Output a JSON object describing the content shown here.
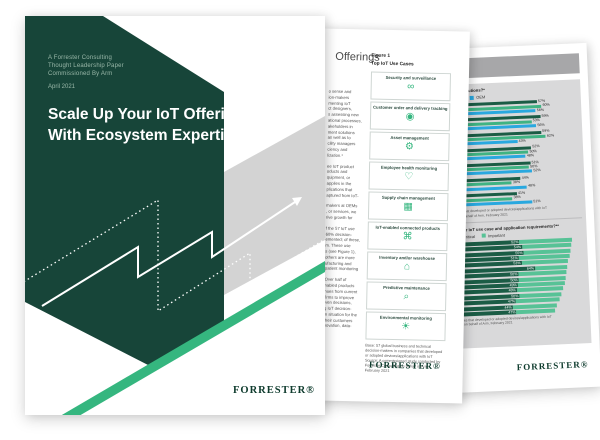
{
  "cover": {
    "meta_lines": [
      "A Forrester Consulting",
      "Thought Leadership Paper",
      "Commissioned By Arm"
    ],
    "date": "April 2021",
    "title_line1": "Scale Up Your IoT Offerings",
    "title_line2": "With Ecosystem Expertise",
    "logo": "FORRESTER®",
    "colors": {
      "dark_green": "#174539",
      "accent_green": "#35b67f",
      "beam_gray": "#d3d3d3"
    }
  },
  "page2": {
    "heading_fragment": "Offerings",
    "figure_label": "Figure 1",
    "figure_title": "Top IoT Use Cases",
    "body_paragraphs": [
      [
        "o sense and",
        "ion-makers",
        "menting IoT",
        "ct designers,",
        "s assessing new",
        "ational processes,",
        "akeholders in",
        "ment solutions",
        "as well as to",
        "cility managers",
        "ciency and",
        "lization.¹"
      ],
      [
        "ee IoT product",
        "oducts and",
        "quipment, or",
        "applies in the",
        "plications that",
        "aptured from IoT-"
      ],
      [
        "makers at OEMs",
        ", or services, we",
        "rive growth for"
      ],
      [
        "f the 57 IoT use",
        "60% decision-",
        "emented; of these,",
        "m. These use",
        "s (see Figure 1),",
        "others are more",
        "ufacturing and",
        "patient monitoring"
      ],
      [
        "Over half of",
        "nabled products",
        "nues from current",
        "firms to improve",
        "iven decisions,",
        "g IoT decision-",
        "in situation for the",
        "their customers",
        "novation, data-"
      ]
    ],
    "use_cases": [
      {
        "label": "Security and surveillance",
        "icon": "binoculars-icon",
        "glyph": "∞"
      },
      {
        "label": "Customer order and delivery tracking",
        "icon": "delivery-pin-icon",
        "glyph": "◉"
      },
      {
        "label": "Asset management",
        "icon": "gears-icon",
        "glyph": "⚙"
      },
      {
        "label": "Employee health monitoring",
        "icon": "health-icon",
        "glyph": "♡"
      },
      {
        "label": "Supply chain management",
        "icon": "supply-chain-icon",
        "glyph": "▦"
      },
      {
        "label": "IoT-enabled connected products",
        "icon": "connected-product-icon",
        "glyph": "⌘"
      },
      {
        "label": "Inventory and/or warehouse",
        "icon": "warehouse-icon",
        "glyph": "⌂"
      },
      {
        "label": "Predictive maintenance",
        "icon": "magnifier-icon",
        "glyph": "⌕"
      },
      {
        "label": "Environmental monitoring",
        "icon": "environment-icon",
        "glyph": "☀"
      }
    ],
    "note_lines": [
      "Base: 57 global business and technical",
      "decision-makers in companies that developed",
      "or adopted devices/applications with IoT",
      "Source: A commissioned study conducted by",
      "Forrester Consulting on behalf of Arm,",
      "February 2021"
    ],
    "logo": "FORRESTER®"
  },
  "page3": {
    "chart1_title": "…IoT solutions?*",
    "chart1_legend": [
      {
        "label": "ISV",
        "color": "#3fb383"
      },
      {
        "label": "OEM",
        "color": "#29a8df"
      }
    ],
    "chart1_note_lines": [
      "…es that developed or adopted devices/applications with IoT",
      "…on behalf of Arm, February 2021"
    ],
    "chart2_title": "…our IoT use case and application requirements?**",
    "chart2_legend": [
      {
        "label": "Critical",
        "color": "#1b5c45"
      },
      {
        "label": "Important",
        "color": "#57c296"
      }
    ],
    "chart2_note_lines": [
      "…es that developed or adopted devices/applications with IoT",
      "…on behalf of Arm, February 2021"
    ],
    "logo": "FORRESTER®"
  },
  "chart_data": [
    {
      "type": "bar",
      "orientation": "horizontal",
      "title": "…IoT solutions?*",
      "legend": [
        "ISV",
        "OEM"
      ],
      "legend_position": "top",
      "grid": false,
      "xlim": [
        0,
        100
      ],
      "series": [
        {
          "name": "Total",
          "color": "#1b5c45",
          "values": [
            57,
            59,
            59,
            52,
            51,
            44,
            41
          ]
        },
        {
          "name": "ISV",
          "color": "#3fb383",
          "values": [
            60,
            53,
            62,
            50,
            50,
            38,
            38
          ]
        },
        {
          "name": "OEM",
          "color": "#29a8df",
          "values": [
            56,
            56,
            43,
            48,
            52,
            48,
            51
          ]
        }
      ]
    },
    {
      "type": "bar",
      "orientation": "horizontal",
      "stacked": true,
      "title": "…our IoT use case and application requirements?**",
      "legend": [
        "Critical",
        "Important"
      ],
      "legend_position": "top",
      "grid": false,
      "xlim": [
        0,
        100
      ],
      "series": [
        {
          "name": "Critical",
          "color": "#1b5c45",
          "values": [
            52,
            54,
            55,
            51,
            53,
            64,
            50,
            50,
            49,
            48,
            50,
            47,
            44,
            47
          ]
        },
        {
          "name": "Important",
          "color": "#57c296",
          "values": [
            44,
            41,
            39,
            42,
            39,
            27,
            40,
            39,
            39,
            39,
            35,
            36,
            37,
            32
          ]
        }
      ]
    }
  ]
}
